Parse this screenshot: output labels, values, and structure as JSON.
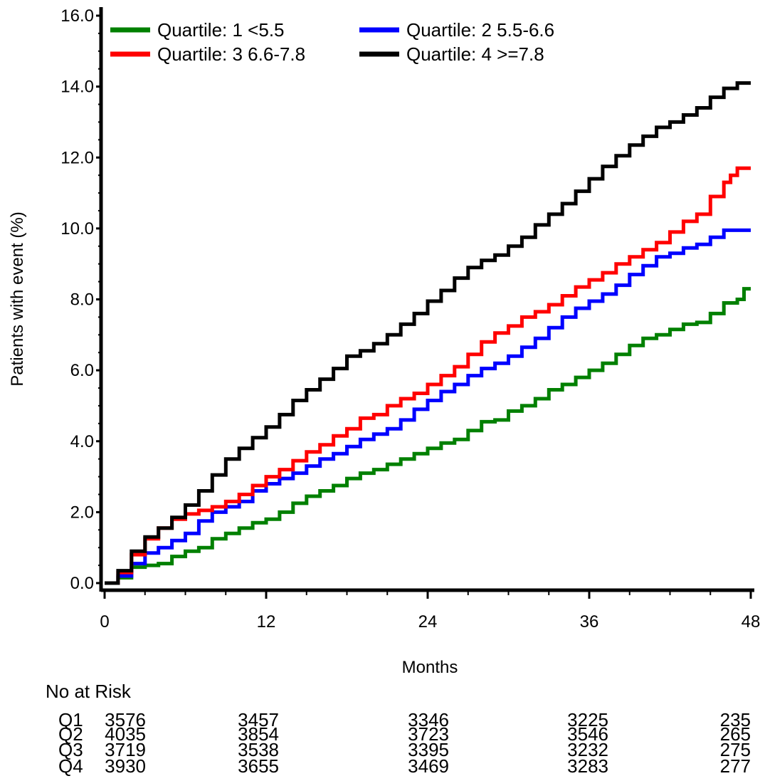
{
  "chart_data": {
    "type": "line",
    "title": "",
    "xlabel": "Months",
    "ylabel": "Patients with event (%)",
    "xlim": [
      0,
      48
    ],
    "ylim": [
      0,
      16
    ],
    "x_ticks": [
      0,
      12,
      24,
      36,
      48
    ],
    "x_tick_labels": [
      "0",
      "12",
      "24",
      "36",
      "48"
    ],
    "y_ticks": [
      0,
      2,
      4,
      6,
      8,
      10,
      12,
      14,
      16
    ],
    "y_tick_labels": [
      "0.0",
      "2.0",
      "4.0",
      "6.0",
      "8.0",
      "10.0",
      "12.0",
      "14.0",
      "16.0"
    ],
    "grid": false,
    "legend_position": "top-left",
    "series": [
      {
        "name": "Quartile: 1 <5.5",
        "color": "#008000",
        "points": [
          [
            0,
            0
          ],
          [
            1,
            0.15
          ],
          [
            2,
            0.45
          ],
          [
            3,
            0.5
          ],
          [
            4,
            0.55
          ],
          [
            5,
            0.75
          ],
          [
            6,
            0.9
          ],
          [
            7,
            1.0
          ],
          [
            8,
            1.25
          ],
          [
            9,
            1.4
          ],
          [
            10,
            1.55
          ],
          [
            11,
            1.7
          ],
          [
            12,
            1.8
          ],
          [
            13,
            2.0
          ],
          [
            14,
            2.25
          ],
          [
            15,
            2.45
          ],
          [
            16,
            2.6
          ],
          [
            17,
            2.75
          ],
          [
            18,
            2.95
          ],
          [
            19,
            3.1
          ],
          [
            20,
            3.2
          ],
          [
            21,
            3.35
          ],
          [
            22,
            3.5
          ],
          [
            23,
            3.65
          ],
          [
            24,
            3.8
          ],
          [
            25,
            3.95
          ],
          [
            26,
            4.05
          ],
          [
            27,
            4.3
          ],
          [
            28,
            4.55
          ],
          [
            29,
            4.6
          ],
          [
            30,
            4.85
          ],
          [
            31,
            5.0
          ],
          [
            32,
            5.2
          ],
          [
            33,
            5.45
          ],
          [
            34,
            5.6
          ],
          [
            35,
            5.8
          ],
          [
            36,
            6.0
          ],
          [
            37,
            6.2
          ],
          [
            38,
            6.45
          ],
          [
            39,
            6.7
          ],
          [
            40,
            6.9
          ],
          [
            41,
            7.0
          ],
          [
            42,
            7.15
          ],
          [
            43,
            7.3
          ],
          [
            44,
            7.35
          ],
          [
            45,
            7.6
          ],
          [
            46,
            7.9
          ],
          [
            47,
            8.0
          ],
          [
            47.5,
            8.3
          ],
          [
            48,
            8.3
          ]
        ]
      },
      {
        "name": "Quartile: 2 5.5-6.6",
        "color": "#0000ff",
        "points": [
          [
            0,
            0
          ],
          [
            1,
            0.2
          ],
          [
            2,
            0.55
          ],
          [
            3,
            0.85
          ],
          [
            4,
            1.0
          ],
          [
            5,
            1.2
          ],
          [
            6,
            1.4
          ],
          [
            7,
            1.75
          ],
          [
            8,
            2.0
          ],
          [
            9,
            2.15
          ],
          [
            10,
            2.3
          ],
          [
            11,
            2.6
          ],
          [
            12,
            2.8
          ],
          [
            13,
            2.95
          ],
          [
            14,
            3.1
          ],
          [
            15,
            3.3
          ],
          [
            16,
            3.5
          ],
          [
            17,
            3.65
          ],
          [
            18,
            3.85
          ],
          [
            19,
            4.05
          ],
          [
            20,
            4.2
          ],
          [
            21,
            4.35
          ],
          [
            22,
            4.6
          ],
          [
            23,
            4.9
          ],
          [
            24,
            5.15
          ],
          [
            25,
            5.4
          ],
          [
            26,
            5.6
          ],
          [
            27,
            5.85
          ],
          [
            28,
            6.05
          ],
          [
            29,
            6.2
          ],
          [
            30,
            6.4
          ],
          [
            31,
            6.65
          ],
          [
            32,
            6.9
          ],
          [
            33,
            7.2
          ],
          [
            34,
            7.5
          ],
          [
            35,
            7.75
          ],
          [
            36,
            7.95
          ],
          [
            37,
            8.15
          ],
          [
            38,
            8.4
          ],
          [
            39,
            8.7
          ],
          [
            40,
            8.95
          ],
          [
            41,
            9.2
          ],
          [
            42,
            9.3
          ],
          [
            43,
            9.45
          ],
          [
            44,
            9.55
          ],
          [
            45,
            9.75
          ],
          [
            46,
            9.95
          ],
          [
            47,
            9.95
          ],
          [
            48,
            9.95
          ]
        ]
      },
      {
        "name": "Quartile: 3 6.6-7.8",
        "color": "#ff0000",
        "points": [
          [
            0,
            0
          ],
          [
            1,
            0.3
          ],
          [
            2,
            0.8
          ],
          [
            3,
            1.25
          ],
          [
            4,
            1.55
          ],
          [
            5,
            1.8
          ],
          [
            6,
            1.95
          ],
          [
            7,
            2.05
          ],
          [
            8,
            2.15
          ],
          [
            9,
            2.3
          ],
          [
            10,
            2.5
          ],
          [
            11,
            2.75
          ],
          [
            12,
            3.0
          ],
          [
            13,
            3.2
          ],
          [
            14,
            3.45
          ],
          [
            15,
            3.7
          ],
          [
            16,
            3.9
          ],
          [
            17,
            4.15
          ],
          [
            18,
            4.35
          ],
          [
            19,
            4.65
          ],
          [
            20,
            4.75
          ],
          [
            21,
            5.0
          ],
          [
            22,
            5.2
          ],
          [
            23,
            5.35
          ],
          [
            24,
            5.6
          ],
          [
            25,
            5.85
          ],
          [
            26,
            6.1
          ],
          [
            27,
            6.45
          ],
          [
            28,
            6.8
          ],
          [
            29,
            7.05
          ],
          [
            30,
            7.25
          ],
          [
            31,
            7.5
          ],
          [
            32,
            7.65
          ],
          [
            33,
            7.85
          ],
          [
            34,
            8.1
          ],
          [
            35,
            8.35
          ],
          [
            36,
            8.55
          ],
          [
            37,
            8.75
          ],
          [
            38,
            9.0
          ],
          [
            39,
            9.2
          ],
          [
            40,
            9.4
          ],
          [
            41,
            9.6
          ],
          [
            42,
            9.9
          ],
          [
            43,
            10.2
          ],
          [
            44,
            10.4
          ],
          [
            45,
            10.9
          ],
          [
            46,
            11.3
          ],
          [
            46.5,
            11.5
          ],
          [
            47,
            11.7
          ],
          [
            48,
            11.7
          ]
        ]
      },
      {
        "name": "Quartile: 4 >=7.8",
        "color": "#000000",
        "points": [
          [
            0,
            0
          ],
          [
            1,
            0.35
          ],
          [
            2,
            0.9
          ],
          [
            3,
            1.3
          ],
          [
            4,
            1.55
          ],
          [
            5,
            1.85
          ],
          [
            6,
            2.2
          ],
          [
            7,
            2.6
          ],
          [
            8,
            3.05
          ],
          [
            9,
            3.5
          ],
          [
            10,
            3.8
          ],
          [
            11,
            4.1
          ],
          [
            12,
            4.4
          ],
          [
            13,
            4.75
          ],
          [
            14,
            5.15
          ],
          [
            15,
            5.45
          ],
          [
            16,
            5.75
          ],
          [
            17,
            6.05
          ],
          [
            18,
            6.4
          ],
          [
            19,
            6.55
          ],
          [
            20,
            6.75
          ],
          [
            21,
            7.0
          ],
          [
            22,
            7.3
          ],
          [
            23,
            7.6
          ],
          [
            24,
            7.95
          ],
          [
            25,
            8.25
          ],
          [
            26,
            8.6
          ],
          [
            27,
            8.9
          ],
          [
            28,
            9.1
          ],
          [
            29,
            9.25
          ],
          [
            30,
            9.5
          ],
          [
            31,
            9.75
          ],
          [
            32,
            10.1
          ],
          [
            33,
            10.4
          ],
          [
            34,
            10.7
          ],
          [
            35,
            11.05
          ],
          [
            36,
            11.4
          ],
          [
            37,
            11.75
          ],
          [
            38,
            12.05
          ],
          [
            39,
            12.35
          ],
          [
            40,
            12.6
          ],
          [
            41,
            12.85
          ],
          [
            42,
            13.0
          ],
          [
            43,
            13.2
          ],
          [
            44,
            13.4
          ],
          [
            45,
            13.7
          ],
          [
            46,
            13.95
          ],
          [
            47,
            14.1
          ],
          [
            48,
            14.1
          ]
        ]
      }
    ],
    "risk_table": {
      "title": "No at Risk",
      "timepoints": [
        0,
        12,
        24,
        36,
        48
      ],
      "rows": [
        {
          "label": "Q1",
          "values": [
            "3576",
            "3457",
            "3346",
            "3225",
            "235"
          ]
        },
        {
          "label": "Q2",
          "values": [
            "4035",
            "3854",
            "3723",
            "3546",
            "265"
          ]
        },
        {
          "label": "Q3",
          "values": [
            "3719",
            "3538",
            "3395",
            "3232",
            "275"
          ]
        },
        {
          "label": "Q4",
          "values": [
            "3930",
            "3655",
            "3469",
            "3283",
            "277"
          ]
        }
      ]
    }
  }
}
